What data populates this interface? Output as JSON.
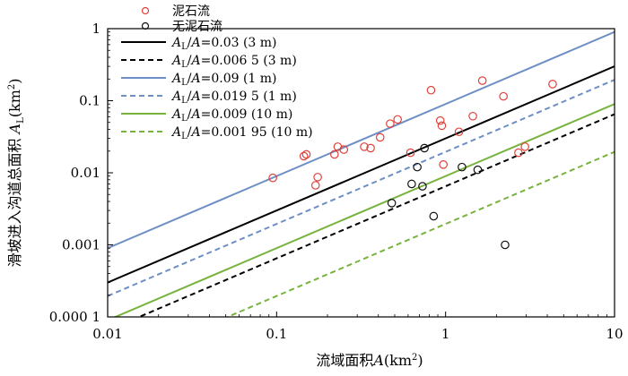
{
  "chart_data": {
    "type": "scatter",
    "xscale": "log",
    "yscale": "log",
    "xlim": [
      0.01,
      10
    ],
    "ylim": [
      0.0001,
      1
    ],
    "xlabel": {
      "main": "流域面积",
      "var": "A",
      "unit_open": "(km",
      "sup": "2",
      "unit_close": ")"
    },
    "ylabel": {
      "main": "滑坡进入沟道总面积 ",
      "var": "A",
      "sub": "L",
      "unit_open": "(km",
      "sup": "2",
      "unit_close": ")"
    },
    "xticks": [
      {
        "value": 0.01,
        "label": "0.01"
      },
      {
        "value": 0.1,
        "label": "0.1"
      },
      {
        "value": 1,
        "label": "1"
      },
      {
        "value": 10,
        "label": "10"
      }
    ],
    "yticks": [
      {
        "value": 1,
        "label": "1"
      },
      {
        "value": 0.1,
        "label": "0.1"
      },
      {
        "value": 0.01,
        "label": "0.01"
      },
      {
        "value": 0.001,
        "label": "0.001"
      },
      {
        "value": 0.0001,
        "label": "0.000 1"
      }
    ],
    "grid": false,
    "legend_position": "top-left",
    "scatter_series": [
      {
        "name": "泥石流",
        "color": "#e0413a",
        "points": [
          [
            0.095,
            0.0085
          ],
          [
            0.145,
            0.017
          ],
          [
            0.15,
            0.018
          ],
          [
            0.17,
            0.0067
          ],
          [
            0.175,
            0.0087
          ],
          [
            0.22,
            0.018
          ],
          [
            0.23,
            0.023
          ],
          [
            0.25,
            0.021
          ],
          [
            0.33,
            0.023
          ],
          [
            0.36,
            0.022
          ],
          [
            0.41,
            0.031
          ],
          [
            0.47,
            0.048
          ],
          [
            0.52,
            0.055
          ],
          [
            0.62,
            0.019
          ],
          [
            0.82,
            0.14
          ],
          [
            0.93,
            0.053
          ],
          [
            0.95,
            0.045
          ],
          [
            0.97,
            0.013
          ],
          [
            1.2,
            0.037
          ],
          [
            1.45,
            0.061
          ],
          [
            1.65,
            0.19
          ],
          [
            2.2,
            0.115
          ],
          [
            2.7,
            0.019
          ],
          [
            2.95,
            0.023
          ],
          [
            4.3,
            0.17
          ]
        ]
      },
      {
        "name": "无泥石流",
        "color": "#111111",
        "points": [
          [
            0.48,
            0.0038
          ],
          [
            0.63,
            0.007
          ],
          [
            0.68,
            0.012
          ],
          [
            0.73,
            0.0065
          ],
          [
            0.75,
            0.022
          ],
          [
            0.85,
            0.0025
          ],
          [
            1.25,
            0.012
          ],
          [
            1.55,
            0.011
          ],
          [
            2.25,
            0.001
          ]
        ]
      }
    ],
    "line_series": [
      {
        "name": {
          "pre": "A",
          "sub": "L",
          "post": "/",
          "var": "A",
          "rest": "=0.03 (3 m)"
        },
        "ratio": 0.03,
        "color": "#000000",
        "dashed": false
      },
      {
        "name": {
          "pre": "A",
          "sub": "L",
          "post": "/",
          "var": "A",
          "rest": "=0.006 5 (3 m)"
        },
        "ratio": 0.0065,
        "color": "#000000",
        "dashed": true
      },
      {
        "name": {
          "pre": "A",
          "sub": "L",
          "post": "/",
          "var": "A",
          "rest": "=0.09 (1 m)"
        },
        "ratio": 0.09,
        "color": "#6d8fc6",
        "dashed": false
      },
      {
        "name": {
          "pre": "A",
          "sub": "L",
          "post": "/",
          "var": "A",
          "rest": "=0.019 5 (1 m)"
        },
        "ratio": 0.0195,
        "color": "#6d8fc6",
        "dashed": true
      },
      {
        "name": {
          "pre": "A",
          "sub": "L",
          "post": "/",
          "var": "A",
          "rest": "=0.009 (10 m)"
        },
        "ratio": 0.009,
        "color": "#78b33e",
        "dashed": false
      },
      {
        "name": {
          "pre": "A",
          "sub": "L",
          "post": "/",
          "var": "A",
          "rest": "=0.001 95 (10 m)"
        },
        "ratio": 0.00195,
        "color": "#78b33e",
        "dashed": true
      }
    ]
  }
}
